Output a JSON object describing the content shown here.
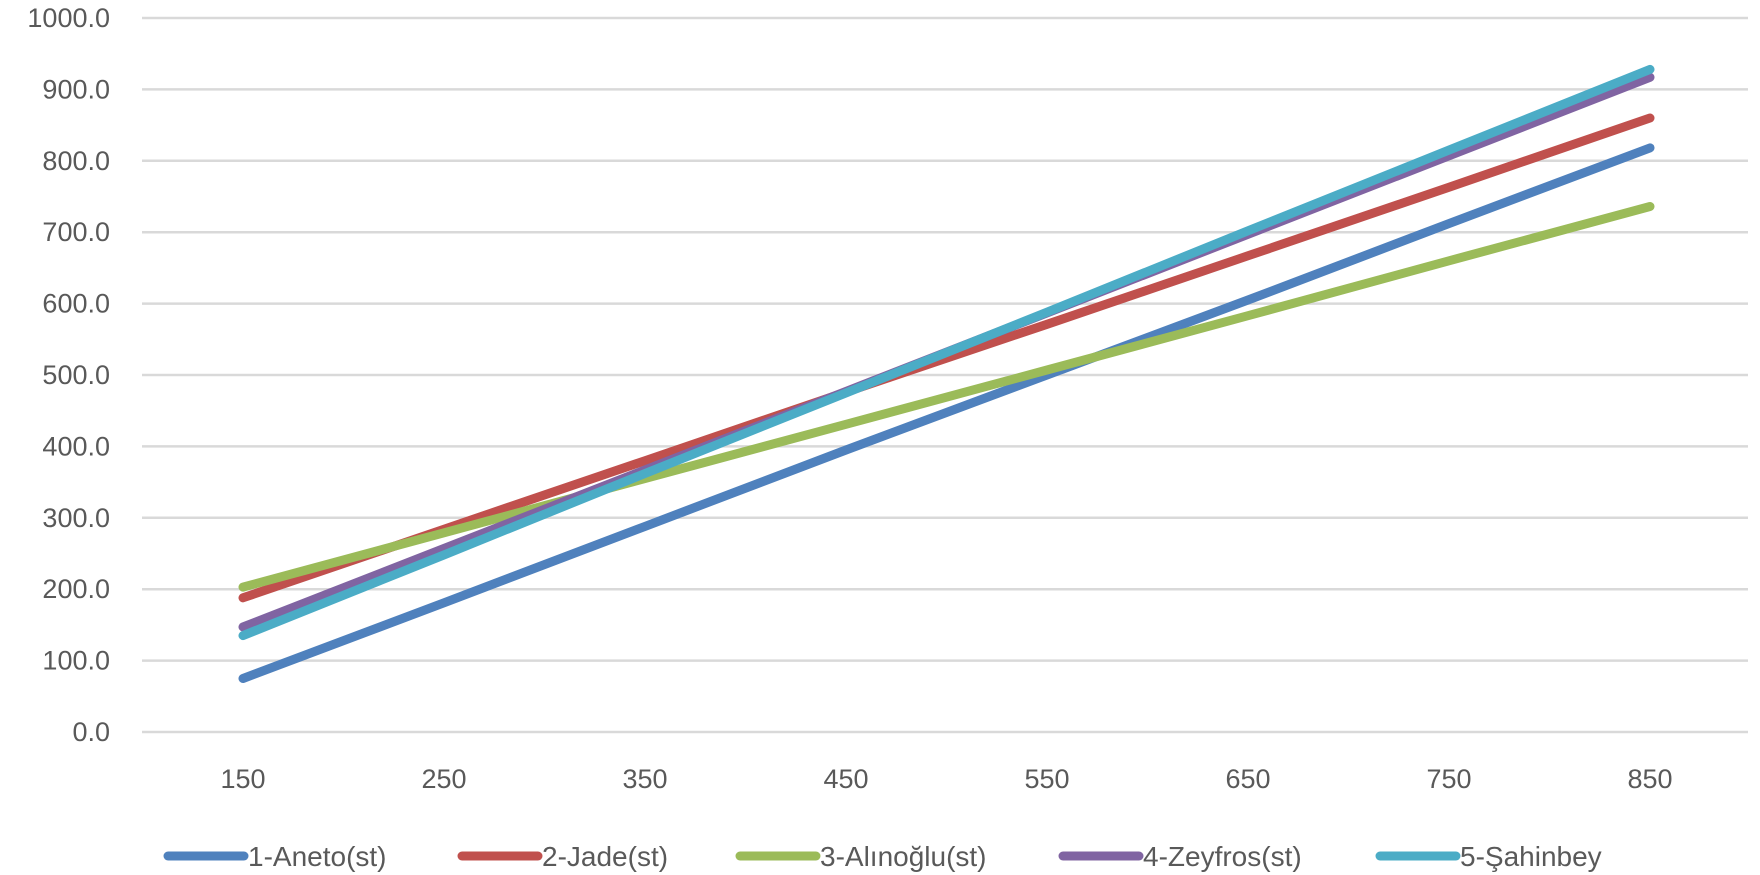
{
  "chart_data": {
    "type": "line",
    "title": "",
    "xlabel": "",
    "ylabel": "",
    "categories": [
      "150",
      "250",
      "350",
      "450",
      "550",
      "650",
      "750",
      "850"
    ],
    "x": [
      150,
      250,
      350,
      450,
      550,
      650,
      750,
      850
    ],
    "ylim": [
      0,
      1000
    ],
    "yticks": [
      "0.0",
      "100.0",
      "200.0",
      "300.0",
      "400.0",
      "500.0",
      "600.0",
      "700.0",
      "800.0",
      "900.0",
      "1000.0"
    ],
    "grid": true,
    "legend_position": "bottom",
    "series": [
      {
        "name": "1-Aneto(st)",
        "color": "#4f81bd",
        "values": [
          75,
          181,
          288,
          395,
          500,
          605,
          712,
          818
        ]
      },
      {
        "name": "2-Jade(st)",
        "color": "#c0504d",
        "values": [
          188,
          284,
          380,
          476,
          571,
          667,
          763,
          860
        ]
      },
      {
        "name": "3-Alınoğlu(st)",
        "color": "#9bbb59",
        "values": [
          203,
          279,
          355,
          431,
          507,
          583,
          660,
          736
        ]
      },
      {
        "name": "4-Zeyfros(st)",
        "color": "#8064a2",
        "values": [
          147,
          257,
          367,
          477,
          587,
          697,
          807,
          917
        ]
      },
      {
        "name": "5-Şahinbey",
        "color": "#4bacc6",
        "values": [
          135,
          248,
          362,
          475,
          588,
          702,
          815,
          928
        ]
      }
    ]
  }
}
